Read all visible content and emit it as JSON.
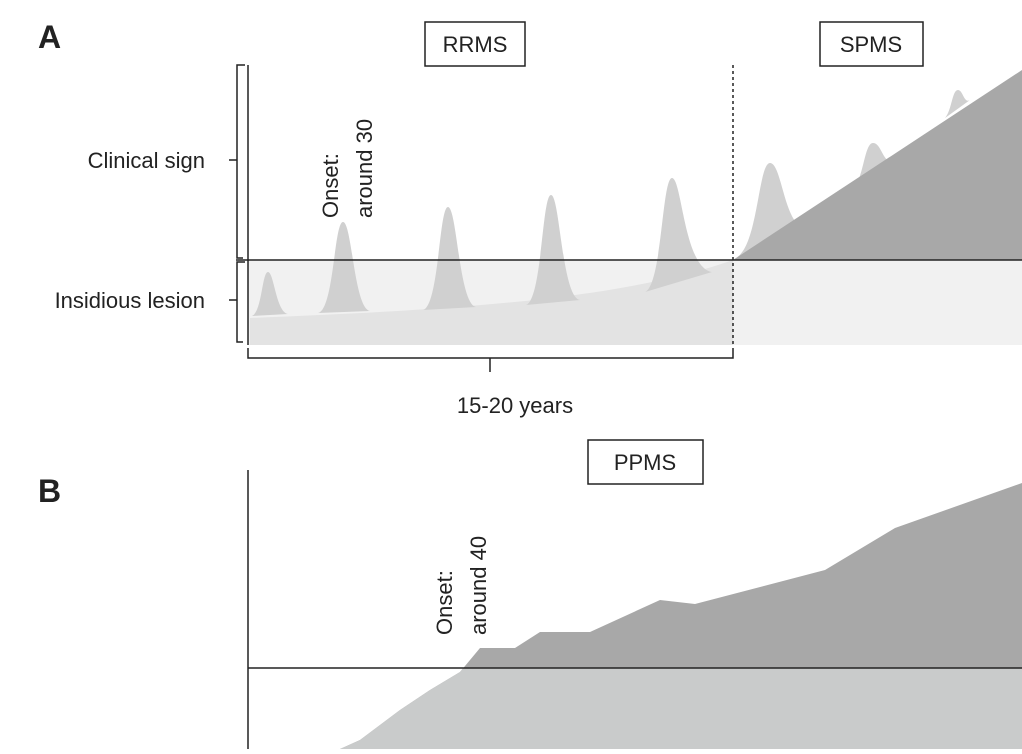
{
  "panels": [
    {
      "label": "A",
      "stages": [
        "RRMS",
        "SPMS"
      ],
      "levels": [
        "Clinical sign",
        "Insidious lesion"
      ],
      "onset": [
        "Onset:",
        "around 30"
      ],
      "duration": "15-20 years"
    },
    {
      "label": "B",
      "stages": [
        "PPMS"
      ],
      "onset": [
        "Onset:",
        "around 40"
      ]
    }
  ]
}
